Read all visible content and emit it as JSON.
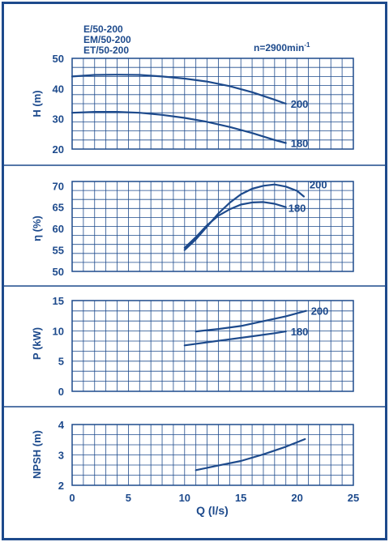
{
  "header": {
    "models": [
      "E/50-200",
      "EM/50-200",
      "ET/50-200"
    ],
    "speed_label": "n=2900min",
    "speed_exponent": "-1"
  },
  "xaxis": {
    "label": "Q (l/s)",
    "range": [
      0,
      25
    ],
    "ticks": [
      0,
      5,
      10,
      15,
      20,
      25
    ],
    "tick_labels": [
      "0",
      "5",
      "10",
      "15",
      "20",
      "25"
    ]
  },
  "colors": {
    "ink": "#1d4a8c",
    "frame": "#1d4a8c",
    "grid": "#1d4a8c",
    "background": "#ffffff"
  },
  "chart_data": [
    {
      "type": "line",
      "ylabel": "H (m)",
      "ylim": [
        20,
        50
      ],
      "yticks": [
        20,
        30,
        40,
        50
      ],
      "ytick_labels": [
        "20",
        "30",
        "40",
        "50"
      ],
      "grid": true,
      "series": [
        {
          "name": "200",
          "x": [
            0,
            2,
            4,
            6,
            8,
            10,
            12,
            14,
            16,
            18,
            19
          ],
          "y": [
            44,
            44.5,
            44.6,
            44.5,
            44,
            43.3,
            42.3,
            40.8,
            38.8,
            36.3,
            35
          ]
        },
        {
          "name": "180",
          "x": [
            0,
            2,
            4,
            6,
            8,
            10,
            12,
            14,
            16,
            18,
            19
          ],
          "y": [
            32,
            32.3,
            32.3,
            32,
            31.3,
            30.3,
            29,
            27.3,
            25.3,
            23,
            22
          ]
        }
      ]
    },
    {
      "type": "line",
      "ylabel": "η (%)",
      "ylim": [
        50,
        71
      ],
      "yticks": [
        50,
        55,
        60,
        65,
        70
      ],
      "ytick_labels": [
        "50",
        "55",
        "60",
        "65",
        "70"
      ],
      "grid": true,
      "series": [
        {
          "name": "200",
          "x": [
            10,
            11,
            12,
            13,
            14,
            15,
            16,
            17,
            18,
            19,
            20,
            20.6
          ],
          "y": [
            55,
            57.5,
            60.5,
            63.5,
            66,
            68,
            69.3,
            70,
            70.3,
            69.8,
            68.8,
            67.5
          ]
        },
        {
          "name": "180",
          "x": [
            10,
            11,
            12,
            13,
            14,
            15,
            16,
            17,
            18,
            19
          ],
          "y": [
            55.5,
            58,
            60.8,
            63,
            64.5,
            65.6,
            66.1,
            66.2,
            65.8,
            65
          ]
        }
      ]
    },
    {
      "type": "line",
      "ylabel": "P (kW)",
      "ylim": [
        0,
        15
      ],
      "yticks": [
        0,
        5,
        10,
        15
      ],
      "ytick_labels": [
        "0",
        "5",
        "10",
        "15"
      ],
      "grid": true,
      "series": [
        {
          "name": "200",
          "x": [
            11,
            13,
            15,
            17,
            19,
            20.8
          ],
          "y": [
            9.9,
            10.3,
            10.8,
            11.6,
            12.4,
            13.3
          ]
        },
        {
          "name": "180",
          "x": [
            10,
            12,
            14,
            16,
            18,
            19
          ],
          "y": [
            7.6,
            8.1,
            8.6,
            9.1,
            9.6,
            9.9
          ]
        }
      ]
    },
    {
      "type": "line",
      "ylabel": "NPSH (m)",
      "ylim": [
        2,
        4
      ],
      "yticks": [
        2,
        3,
        4
      ],
      "ytick_labels": [
        "2",
        "3",
        "4"
      ],
      "grid": true,
      "series": [
        {
          "x": [
            11,
            13,
            15,
            17,
            19,
            20.7
          ],
          "y": [
            2.5,
            2.65,
            2.8,
            3.02,
            3.27,
            3.52
          ]
        }
      ]
    }
  ]
}
